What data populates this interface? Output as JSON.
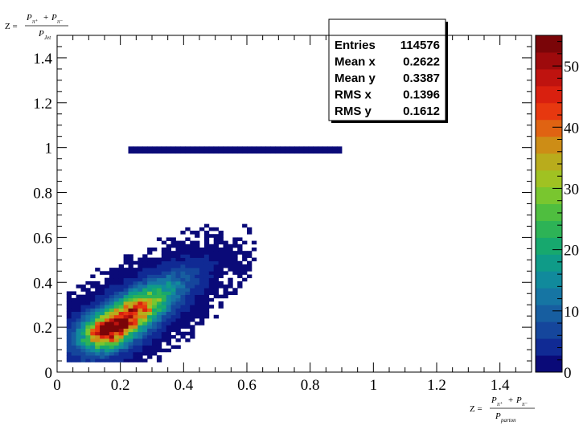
{
  "chart_data": {
    "type": "heatmap",
    "title": "",
    "xlabel": {
      "prefix": "Z =",
      "numerator_a": "P",
      "numerator_a_sub": "π⁺",
      "plus": "+",
      "numerator_b": "P",
      "numerator_b_sub": "π⁻",
      "denominator": "P",
      "denominator_sub": "parton"
    },
    "ylabel": {
      "prefix": "Z =",
      "numerator_a": "P",
      "numerator_a_sub": "π⁺",
      "plus": "+",
      "numerator_b": "P",
      "numerator_b_sub": "π⁻",
      "denominator": "P",
      "denominator_sub": "Jet"
    },
    "xlim": [
      0,
      1.5
    ],
    "ylim": [
      0,
      1.5
    ],
    "x_ticks": [
      "0",
      "0.2",
      "0.4",
      "0.6",
      "0.8",
      "1",
      "1.2",
      "1.4"
    ],
    "y_ticks": [
      "0",
      "0.2",
      "0.4",
      "0.6",
      "0.8",
      "1",
      "1.2",
      "1.4"
    ],
    "z_range": [
      0,
      55
    ],
    "z_ticks": [
      "0",
      "10",
      "20",
      "30",
      "40",
      "50"
    ],
    "bins": 100,
    "distribution": {
      "mean_x": 0.2622,
      "mean_y": 0.3387,
      "rms_x": 0.1396,
      "rms_y": 0.1612,
      "entries": 114576,
      "peak_x": 0.165,
      "peak_y": 0.19,
      "z_max": 55
    },
    "stats_box": {
      "rows": [
        {
          "label": "Entries",
          "value": "114576"
        },
        {
          "label": "Mean x",
          "value": "0.2622"
        },
        {
          "label": "Mean y",
          "value": "0.3387"
        },
        {
          "label": "RMS x",
          "value": "0.1396"
        },
        {
          "label": "RMS y",
          "value": "0.1612"
        }
      ]
    },
    "palette": [
      "#0a0a78",
      "#102a94",
      "#15469c",
      "#175ea0",
      "#1675a3",
      "#118a9c",
      "#0f9b88",
      "#17a86e",
      "#2db356",
      "#4fbe3f",
      "#79c62f",
      "#a0c222",
      "#b9ac1c",
      "#cd8d16",
      "#e06312",
      "#e7380f",
      "#d9200f",
      "#bf130f",
      "#9e0a0c",
      "#7a0508"
    ],
    "colors": {
      "frame": "#000000",
      "stats_border": "#000000",
      "background": "#ffffff"
    }
  }
}
